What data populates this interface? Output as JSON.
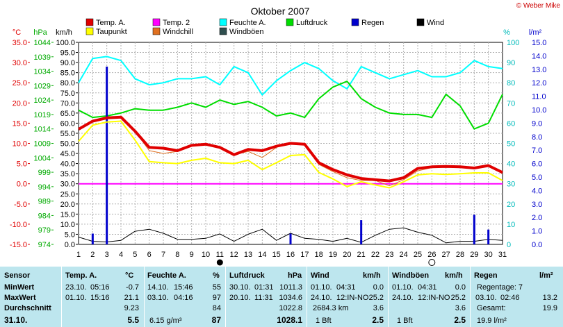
{
  "title": "Oktober 2007",
  "copyright": "© Weber Mike",
  "colors": {
    "temp_a": "#e00000",
    "temp2": "#ff00ff",
    "feuchte": "#00ffff",
    "luftdruck": "#00dd00",
    "regen": "#0000cc",
    "wind": "#000000",
    "taupunkt": "#ffff00",
    "windchill": "#e07020",
    "windboeen": "#2f4f4f",
    "zero_line": "#ff00ff",
    "table_bg": "#bde6ee"
  },
  "legend": [
    {
      "label": "Temp. A.",
      "color": "#e00000"
    },
    {
      "label": "Temp. 2",
      "color": "#ff00ff"
    },
    {
      "label": "Feuchte A.",
      "color": "#00ffff"
    },
    {
      "label": "Luftdruck",
      "color": "#00dd00"
    },
    {
      "label": "Regen",
      "color": "#0000cc"
    },
    {
      "label": "Wind",
      "color": "#000000"
    },
    {
      "label": "Taupunkt",
      "color": "#ffff00"
    },
    {
      "label": "Windchill",
      "color": "#e07020"
    },
    {
      "label": "Windböen",
      "color": "#2f4f4f"
    }
  ],
  "chart_data": {
    "type": "line",
    "title": "Oktober 2007",
    "x": [
      1,
      2,
      3,
      4,
      5,
      6,
      7,
      8,
      9,
      10,
      11,
      12,
      13,
      14,
      15,
      16,
      17,
      18,
      19,
      20,
      21,
      22,
      23,
      24,
      25,
      26,
      27,
      28,
      29,
      30,
      31
    ],
    "axes": {
      "temp_c": {
        "label": "°C",
        "ticks": [
          "35.0",
          "30.0",
          "25.0",
          "20.0",
          "15.0",
          "10.0",
          "5.0",
          "0.0",
          "-5.0",
          "-10.0",
          "-15.0"
        ],
        "range": [
          -15,
          35
        ]
      },
      "pressure_hpa": {
        "label": "hPa",
        "ticks": [
          "1044",
          "1039",
          "1034",
          "1029",
          "1024",
          "1019",
          "1014",
          "1009",
          "1004",
          "999",
          "994",
          "989",
          "984",
          "979",
          "974"
        ],
        "range": [
          974,
          1044
        ]
      },
      "wind_kmh": {
        "label": "km/h",
        "ticks": [
          "100.0",
          "95.0",
          "90.0",
          "85.0",
          "80.0",
          "75.0",
          "70.0",
          "65.0",
          "60.0",
          "55.0",
          "50.0",
          "45.0",
          "40.0",
          "35.0",
          "30.0",
          "25.0",
          "20.0",
          "15.0",
          "10.0",
          "5.0",
          "0.0"
        ],
        "range": [
          0,
          100
        ]
      },
      "humidity_pct": {
        "label": "%",
        "ticks": [
          "100",
          "90",
          "80",
          "70",
          "60",
          "50",
          "40",
          "30",
          "20",
          "10",
          "0"
        ],
        "range": [
          0,
          100
        ]
      },
      "rain_lm2": {
        "label": "l/m²",
        "ticks": [
          "15.0",
          "14.0",
          "13.0",
          "12.0",
          "11.0",
          "10.0",
          "9.0",
          "8.0",
          "7.0",
          "6.0",
          "5.0",
          "4.0",
          "3.0",
          "2.0",
          "1.0",
          "0.0"
        ],
        "range": [
          0,
          15
        ]
      }
    },
    "x_ticks": [
      "1",
      "2",
      "3",
      "4",
      "5",
      "6",
      "7",
      "8",
      "9",
      "10",
      "11",
      "12",
      "13",
      "14",
      "15",
      "16",
      "17",
      "18",
      "19",
      "20",
      "21",
      "22",
      "23",
      "24",
      "25",
      "26",
      "27",
      "28",
      "29",
      "30",
      "31"
    ],
    "series": [
      {
        "name": "Temp. A.",
        "axis": "temp_c",
        "values": [
          13.5,
          15.5,
          16.3,
          16.5,
          13,
          9,
          8.8,
          8.2,
          9.5,
          9.8,
          9,
          7.2,
          8.5,
          8.2,
          9.3,
          10,
          9.8,
          5.2,
          3.5,
          2.2,
          1.3,
          1.0,
          0.7,
          1.5,
          3.8,
          4.2,
          4.3,
          4.2,
          3.9,
          4.5,
          2.8
        ]
      },
      {
        "name": "Taupunkt",
        "axis": "temp_c",
        "values": [
          10.5,
          14.5,
          15.3,
          15.5,
          10.8,
          5.5,
          5.2,
          5.0,
          5.8,
          6.3,
          5.2,
          5.0,
          5.8,
          3.5,
          5.2,
          7.0,
          7.2,
          2.8,
          1.2,
          -0.7,
          0.5,
          -0.3,
          -1.0,
          0.5,
          2.2,
          2.5,
          2.3,
          2.5,
          2.7,
          2.7,
          0.8
        ]
      },
      {
        "name": "Windchill",
        "axis": "temp_c",
        "values": [
          13.5,
          15.5,
          16.3,
          16.5,
          13,
          8.2,
          7.5,
          8.0,
          9.5,
          9.8,
          9,
          7.2,
          8.0,
          6.5,
          9.0,
          10,
          9.8,
          4.8,
          3.0,
          1.5,
          0.8,
          0.8,
          -0.5,
          1.0,
          3.2,
          4.0,
          4.3,
          4.2,
          3.9,
          4.5,
          2.5
        ]
      },
      {
        "name": "Feuchte A.",
        "axis": "humidity_pct",
        "values": [
          80,
          92,
          93,
          91,
          82,
          79,
          80,
          82,
          82,
          83,
          79,
          88,
          85,
          74,
          81,
          86,
          90,
          87,
          81,
          77,
          88,
          85,
          82,
          84,
          86,
          83,
          83,
          85,
          91,
          88,
          87
        ]
      },
      {
        "name": "Luftdruck",
        "axis": "pressure_hpa",
        "values": [
          1020.5,
          1018,
          1018.5,
          1019.5,
          1021,
          1020.5,
          1020.5,
          1021.5,
          1023,
          1021.5,
          1024,
          1022.5,
          1023.5,
          1021.5,
          1018.5,
          1019.5,
          1018,
          1024.5,
          1028.5,
          1030.5,
          1024.5,
          1021.5,
          1019.5,
          1019,
          1019,
          1018,
          1026,
          1022,
          1014,
          1016,
          1026
        ]
      },
      {
        "name": "Wind",
        "axis": "wind_kmh",
        "values": [
          3.6,
          1.5,
          1.2,
          2.0,
          6.5,
          7.5,
          5.5,
          2.5,
          2.5,
          3.0,
          5.2,
          1.5,
          5.0,
          7.5,
          2.0,
          5.5,
          3.0,
          2.5,
          1.5,
          3.0,
          1.0,
          4.5,
          7.5,
          8.2,
          6.0,
          4.5,
          0.8,
          1.5,
          1.5,
          2.5,
          2.0
        ]
      },
      {
        "name": "Regen",
        "axis": "rain_lm2",
        "type": "bar",
        "values": [
          0,
          0.8,
          13.2,
          0,
          0,
          0,
          0,
          0,
          0,
          0,
          0,
          0,
          0,
          0,
          0,
          0.8,
          0,
          0,
          0,
          0,
          1.8,
          0,
          0,
          0,
          0,
          0,
          0,
          0,
          2.2,
          1.1,
          0
        ]
      }
    ]
  },
  "summary": {
    "header": {
      "sensor": "Sensor",
      "temp": "Temp. A.",
      "temp_unit": "°C",
      "feuchte": "Feuchte A.",
      "feuchte_unit": "%",
      "luftdruck": "Luftdruck",
      "luftdruck_unit": "hPa",
      "wind": "Wind",
      "wind_unit": "km/h",
      "boeen": "Windböen",
      "boeen_unit": "km/h",
      "regen": "Regen",
      "regen_unit": "l/m²"
    },
    "min": {
      "label": "MinWert",
      "temp_date": "23.10.",
      "temp_time": "05:16",
      "temp_val": "-0.7",
      "feuchte_date": "14.10.",
      "feuchte_time": "15:46",
      "feuchte_val": "55",
      "druck_date": "30.10.",
      "druck_time": "01:31",
      "druck_val": "1011.3",
      "wind_date": "01.10.",
      "wind_time": "04:31",
      "wind_val": "0.0",
      "boeen_date": "01.10.",
      "boeen_time": "04:31",
      "boeen_val": "0.0",
      "regen_text": "Regentage: 7"
    },
    "max": {
      "label": "MaxWert",
      "temp_date": "01.10.",
      "temp_time": "15:16",
      "temp_val": "21.1",
      "feuchte_date": "03.10.",
      "feuchte_time": "04:16",
      "feuchte_val": "97",
      "druck_date": "20.10.",
      "druck_time": "11:31",
      "druck_val": "1034.6",
      "wind_date": "24.10.",
      "wind_time": "12:IN-NO",
      "wind_val": "25.2",
      "boeen_date": "24.10.",
      "boeen_time": "12:IN-NO",
      "boeen_val": "25.2",
      "regen_date": "03.10.",
      "regen_time": "02:46",
      "regen_val": "13.2"
    },
    "avg": {
      "label": "Durchschnitt",
      "temp_val": "9.23",
      "feuchte_val": "84",
      "druck_val": "1022.8",
      "wind_dist": "2684.3 km",
      "wind_val": "3.6",
      "boeen_val": "3.6",
      "regen_label": "Gesamt:",
      "regen_val": "19.9"
    },
    "cur": {
      "label": "31.10.",
      "temp_val": "5.5",
      "feuchte_extra": "6.15 g/m³",
      "feuchte_val": "87",
      "druck_val": "1028.1",
      "wind_bft": "1 Bft",
      "wind_val": "2.5",
      "boeen_bft": "1 Bft",
      "boeen_val": "2.5",
      "regen_text": "19.9 l/m²"
    }
  }
}
